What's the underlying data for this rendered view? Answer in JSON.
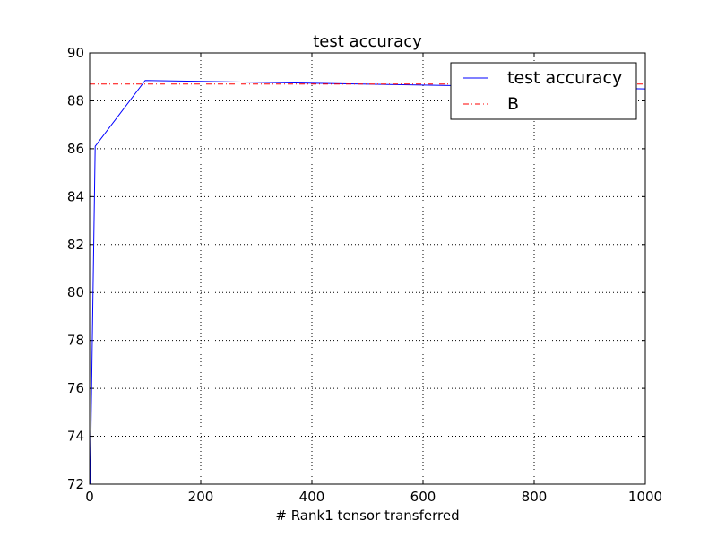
{
  "chart_data": {
    "type": "line",
    "title": "test accuracy",
    "xlabel": "# Rank1 tensor transferred",
    "ylabel": "",
    "xlim": [
      0,
      1000
    ],
    "ylim": [
      72,
      90
    ],
    "xticks": [
      0,
      200,
      400,
      600,
      800,
      1000
    ],
    "yticks": [
      72,
      74,
      76,
      78,
      80,
      82,
      84,
      86,
      88,
      90
    ],
    "grid": true,
    "legend_position": "top-right",
    "series": [
      {
        "name": "test accuracy",
        "style": "solid",
        "color": "#0000ff",
        "x": [
          1,
          10,
          100,
          1000
        ],
        "y": [
          72.0,
          86.1,
          88.85,
          88.5
        ]
      },
      {
        "name": "B",
        "style": "dash-dot",
        "color": "#ff0000",
        "x": [
          0,
          1000
        ],
        "y": [
          88.7,
          88.7
        ]
      }
    ]
  }
}
